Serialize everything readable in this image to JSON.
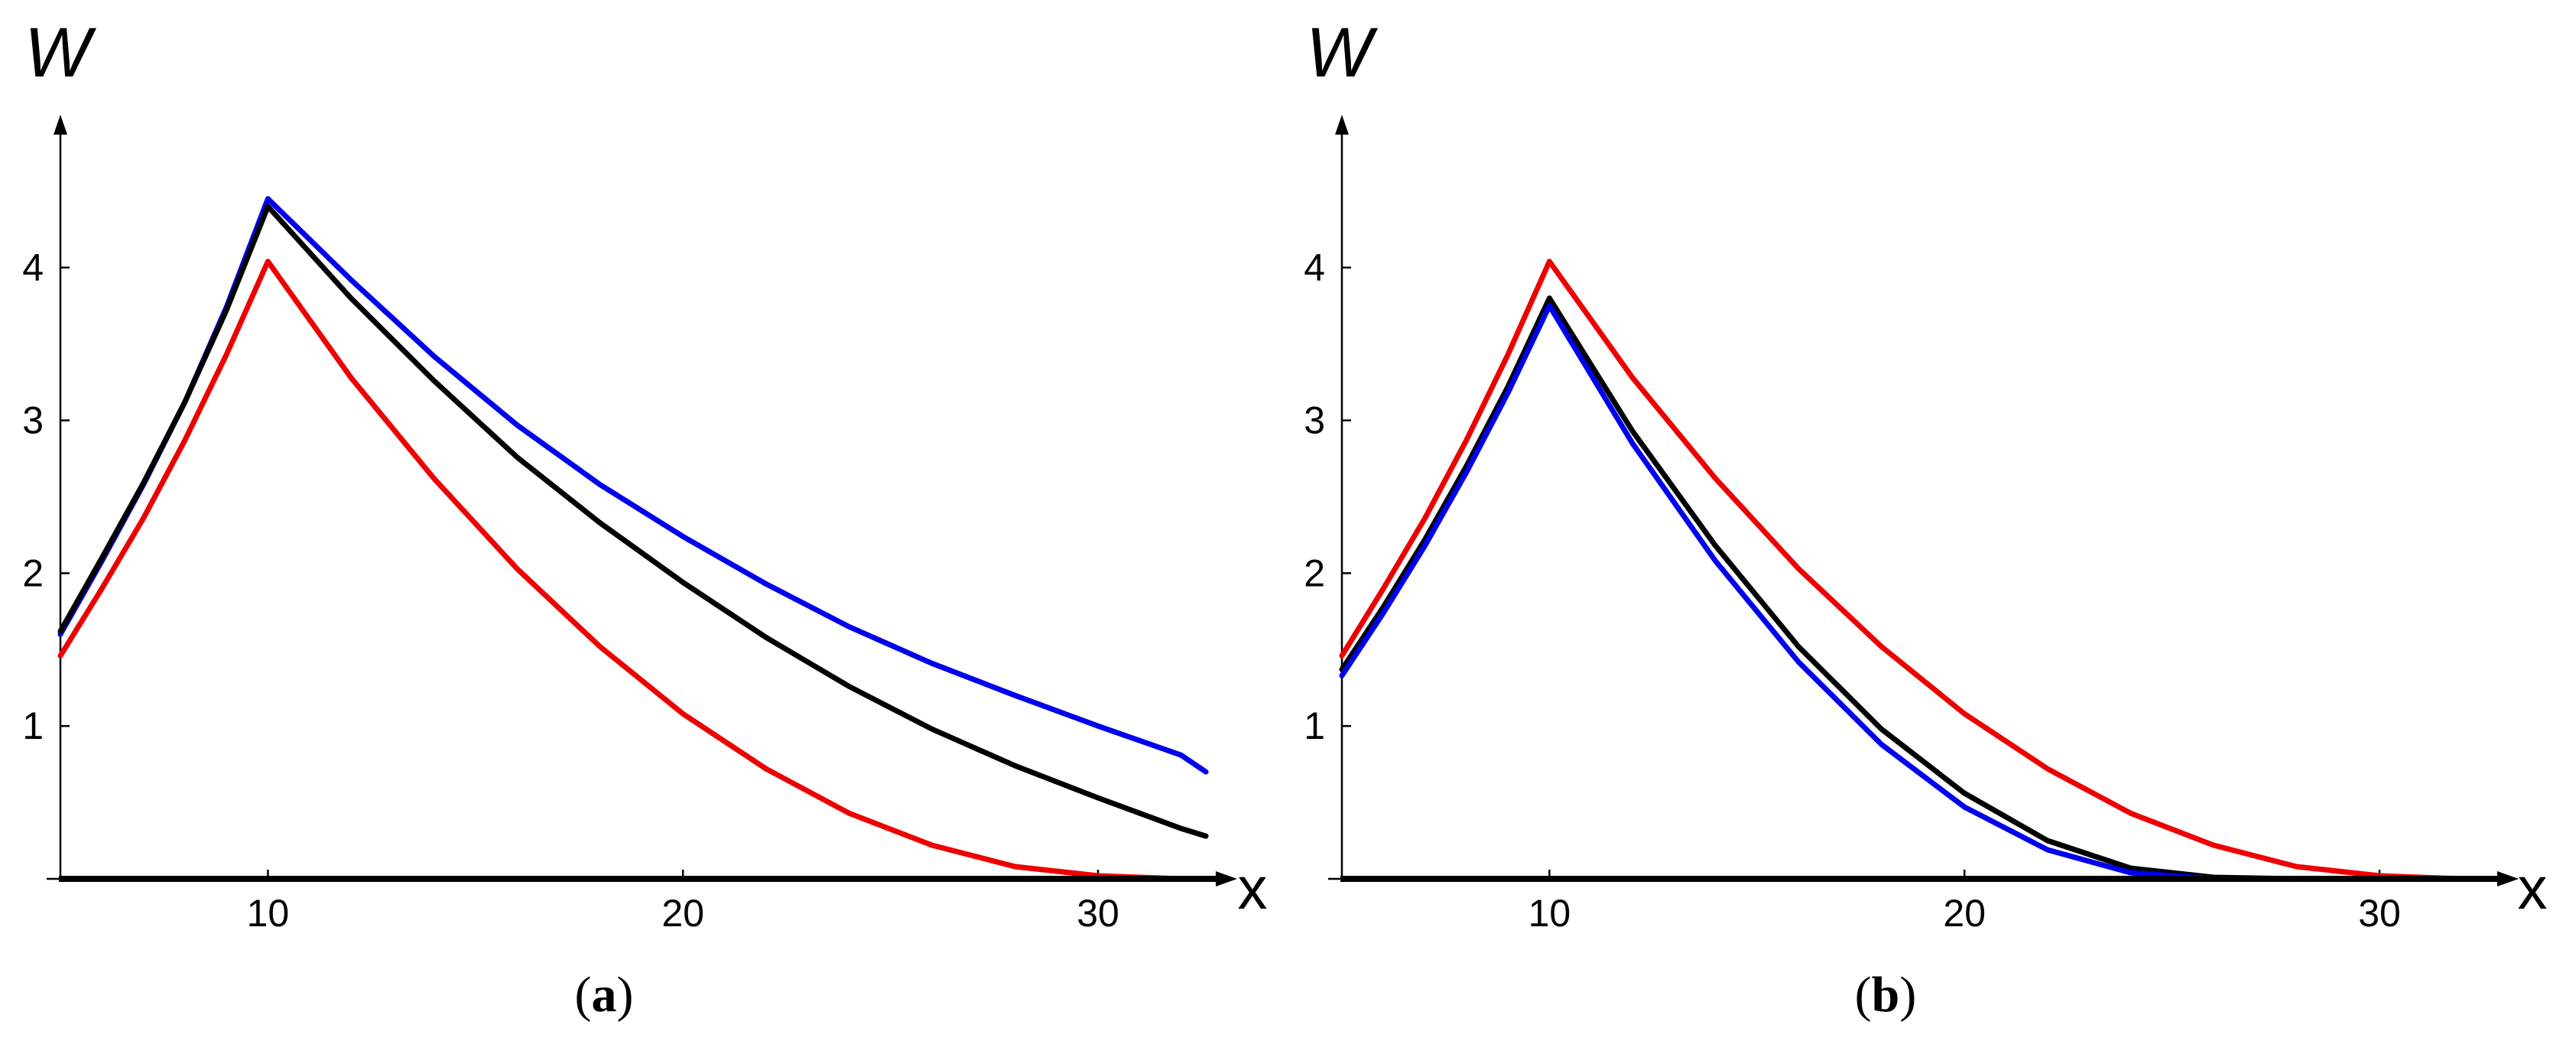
{
  "chart_data": [
    {
      "type": "line",
      "panel_label": "(a)",
      "xlabel": "x",
      "ylabel": "W",
      "xlim": [
        5,
        32.8
      ],
      "ylim": [
        0,
        5.0
      ],
      "xticks": [
        10,
        20,
        30
      ],
      "yticks": [
        1,
        2,
        3,
        4
      ],
      "grid": false,
      "legend": null,
      "series": [
        {
          "color": "#0000ee",
          "points": [
            [
              5,
              1.6
            ],
            [
              6,
              2.08
            ],
            [
              7,
              2.58
            ],
            [
              8,
              3.12
            ],
            [
              9,
              3.74
            ],
            [
              10,
              4.45
            ],
            [
              12,
              3.92
            ],
            [
              14,
              3.42
            ],
            [
              16,
              2.97
            ],
            [
              18,
              2.58
            ],
            [
              20,
              2.24
            ],
            [
              22,
              1.93
            ],
            [
              24,
              1.65
            ],
            [
              26,
              1.41
            ],
            [
              28,
              1.2
            ],
            [
              30,
              1.0
            ],
            [
              32,
              0.81
            ],
            [
              32.6,
              0.7
            ]
          ]
        },
        {
          "color": "#000000",
          "points": [
            [
              5,
              1.62
            ],
            [
              6,
              2.1
            ],
            [
              7,
              2.59
            ],
            [
              8,
              3.12
            ],
            [
              9,
              3.72
            ],
            [
              10,
              4.4
            ],
            [
              12,
              3.8
            ],
            [
              14,
              3.26
            ],
            [
              16,
              2.76
            ],
            [
              18,
              2.33
            ],
            [
              20,
              1.94
            ],
            [
              22,
              1.58
            ],
            [
              24,
              1.26
            ],
            [
              26,
              0.98
            ],
            [
              28,
              0.74
            ],
            [
              30,
              0.53
            ],
            [
              32,
              0.33
            ],
            [
              32.6,
              0.28
            ]
          ]
        },
        {
          "color": "#ee0000",
          "points": [
            [
              5,
              1.46
            ],
            [
              6,
              1.9
            ],
            [
              7,
              2.36
            ],
            [
              8,
              2.87
            ],
            [
              9,
              3.43
            ],
            [
              10,
              4.04
            ],
            [
              12,
              3.28
            ],
            [
              14,
              2.62
            ],
            [
              16,
              2.03
            ],
            [
              18,
              1.52
            ],
            [
              20,
              1.08
            ],
            [
              22,
              0.72
            ],
            [
              24,
              0.43
            ],
            [
              26,
              0.22
            ],
            [
              28,
              0.08
            ],
            [
              30,
              0.02
            ],
            [
              32,
              0.0
            ],
            [
              32.6,
              0.0
            ]
          ]
        }
      ]
    },
    {
      "type": "line",
      "panel_label": "(b)",
      "xlabel": "x",
      "ylabel": "W",
      "xlim": [
        5,
        32.8
      ],
      "ylim": [
        0,
        5.0
      ],
      "xticks": [
        10,
        20,
        30
      ],
      "yticks": [
        1,
        2,
        3,
        4
      ],
      "grid": false,
      "legend": null,
      "series": [
        {
          "color": "#ee0000",
          "points": [
            [
              5,
              1.46
            ],
            [
              6,
              1.9
            ],
            [
              7,
              2.36
            ],
            [
              8,
              2.87
            ],
            [
              9,
              3.43
            ],
            [
              10,
              4.04
            ],
            [
              12,
              3.28
            ],
            [
              14,
              2.62
            ],
            [
              16,
              2.03
            ],
            [
              18,
              1.52
            ],
            [
              20,
              1.08
            ],
            [
              22,
              0.72
            ],
            [
              24,
              0.43
            ],
            [
              26,
              0.22
            ],
            [
              28,
              0.08
            ],
            [
              30,
              0.02
            ],
            [
              32,
              0.0
            ],
            [
              32.6,
              0.0
            ]
          ]
        },
        {
          "color": "#000000",
          "points": [
            [
              5,
              1.37
            ],
            [
              6,
              1.78
            ],
            [
              7,
              2.22
            ],
            [
              8,
              2.7
            ],
            [
              9,
              3.22
            ],
            [
              10,
              3.8
            ],
            [
              12,
              2.93
            ],
            [
              14,
              2.18
            ],
            [
              16,
              1.52
            ],
            [
              18,
              0.98
            ],
            [
              20,
              0.56
            ],
            [
              22,
              0.25
            ],
            [
              24,
              0.07
            ],
            [
              26,
              0.01
            ],
            [
              28,
              0.0
            ],
            [
              30,
              0.0
            ],
            [
              32,
              0.0
            ],
            [
              32.6,
              0.0
            ]
          ]
        },
        {
          "color": "#0000ee",
          "points": [
            [
              5,
              1.33
            ],
            [
              6,
              1.74
            ],
            [
              7,
              2.18
            ],
            [
              8,
              2.66
            ],
            [
              9,
              3.18
            ],
            [
              10,
              3.75
            ],
            [
              12,
              2.85
            ],
            [
              14,
              2.08
            ],
            [
              16,
              1.42
            ],
            [
              18,
              0.88
            ],
            [
              20,
              0.47
            ],
            [
              22,
              0.19
            ],
            [
              24,
              0.04
            ],
            [
              26,
              0.0
            ],
            [
              28,
              0.0
            ],
            [
              30,
              0.0
            ],
            [
              32,
              0.0
            ],
            [
              32.6,
              0.0
            ]
          ]
        }
      ]
    }
  ]
}
